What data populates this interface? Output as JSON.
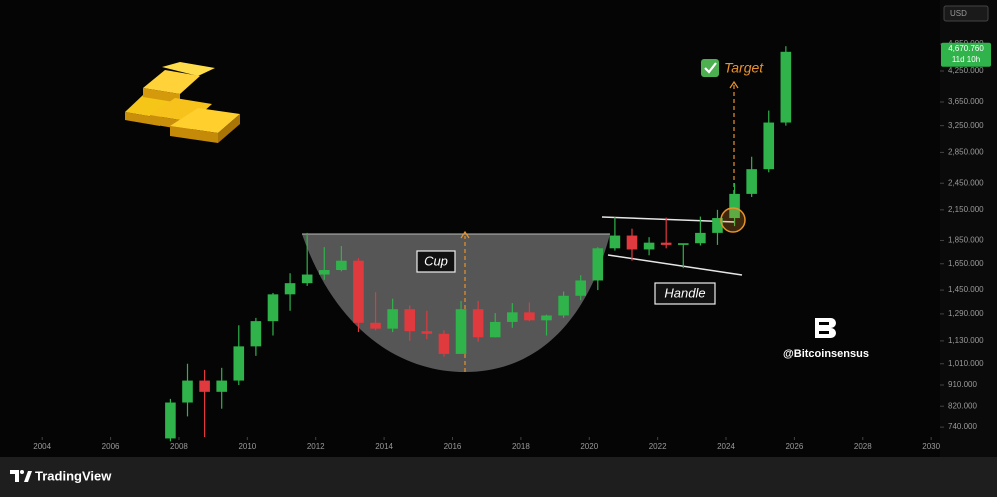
{
  "chart_data": {
    "type": "candlestick",
    "currency": "USD",
    "log_scale": true,
    "grid": false,
    "up_color": "#2fb34a",
    "down_color": "#e0393e",
    "x": [
      2007.75,
      2008.25,
      2008.75,
      2009.25,
      2009.75,
      2010.25,
      2010.75,
      2011.25,
      2011.75,
      2012.25,
      2012.75,
      2013.25,
      2013.75,
      2014.25,
      2014.75,
      2015.25,
      2015.75,
      2016.25,
      2016.75,
      2017.25,
      2017.75,
      2018.25,
      2018.75,
      2019.25,
      2019.75,
      2020.25,
      2020.75,
      2021.25,
      2021.75,
      2022.25,
      2022.75,
      2023.25,
      2023.75,
      2024.25,
      2024.75,
      2025.25,
      2025.75
    ],
    "open": [
      700,
      835,
      930,
      880,
      930,
      1100,
      1245,
      1420,
      1500,
      1565,
      1600,
      1675,
      1235,
      1200,
      1320,
      1185,
      1170,
      1060,
      1320,
      1150,
      1240,
      1300,
      1250,
      1280,
      1410,
      1520,
      1780,
      1895,
      1770,
      1830,
      1810,
      1825,
      1920,
      2065,
      2325,
      2625,
      3300
    ],
    "high": [
      850,
      1010,
      980,
      990,
      1220,
      1265,
      1430,
      1575,
      1920,
      1790,
      1800,
      1695,
      1435,
      1390,
      1345,
      1310,
      1190,
      1375,
      1375,
      1295,
      1360,
      1365,
      1285,
      1440,
      1560,
      1790,
      2075,
      1960,
      1880,
      2070,
      1820,
      2080,
      2150,
      2450,
      2790,
      3500,
      4800
    ],
    "low": [
      690,
      780,
      705,
      810,
      910,
      1050,
      1160,
      1310,
      1480,
      1525,
      1590,
      1180,
      1190,
      1180,
      1130,
      1140,
      1045,
      1060,
      1125,
      1150,
      1205,
      1245,
      1160,
      1265,
      1380,
      1450,
      1760,
      1675,
      1720,
      1780,
      1615,
      1805,
      1810,
      1985,
      2290,
      2585,
      3250
    ],
    "close": [
      835,
      930,
      880,
      930,
      1100,
      1245,
      1420,
      1500,
      1565,
      1600,
      1675,
      1235,
      1200,
      1320,
      1185,
      1170,
      1060,
      1320,
      1150,
      1240,
      1300,
      1250,
      1280,
      1410,
      1520,
      1780,
      1895,
      1770,
      1830,
      1810,
      1825,
      1920,
      2065,
      2325,
      2625,
      3300,
      4670
    ],
    "xlim": [
      2003,
      2030.2
    ],
    "xticks": [
      2004,
      2006,
      2008,
      2010,
      2012,
      2014,
      2016,
      2018,
      2020,
      2022,
      2024,
      2026,
      2028,
      2030
    ],
    "ylim": [
      705,
      5790
    ],
    "yticks": [
      {
        "value": 740,
        "label": "740.000"
      },
      {
        "value": 820,
        "label": "820.000"
      },
      {
        "value": 910,
        "label": "910.000"
      },
      {
        "value": 1010,
        "label": "1,010.000"
      },
      {
        "value": 1130,
        "label": "1,130.000"
      },
      {
        "value": 1290,
        "label": "1,290.000"
      },
      {
        "value": 1450,
        "label": "1,450.000"
      },
      {
        "value": 1650,
        "label": "1,650.000"
      },
      {
        "value": 1850,
        "label": "1,850.000"
      },
      {
        "value": 2150,
        "label": "2,150.000"
      },
      {
        "value": 2450,
        "label": "2,450.000"
      },
      {
        "value": 2850,
        "label": "2,850.000"
      },
      {
        "value": 3250,
        "label": "3,250.000"
      },
      {
        "value": 3650,
        "label": "3,650.000"
      },
      {
        "value": 4250,
        "label": "4,250.000"
      },
      {
        "value": 4850,
        "label": "4,850.000"
      }
    ],
    "last_price": 4670.76,
    "last_price_label": "4,670.760",
    "last_price_color": "#2fb34a",
    "countdown": "11d 10h",
    "annotations": {
      "target": "Target",
      "cup": "Cup",
      "handle": "Handle"
    },
    "watermark": "@Bitcoinsensus"
  },
  "footer": {
    "brand": "TradingView"
  }
}
